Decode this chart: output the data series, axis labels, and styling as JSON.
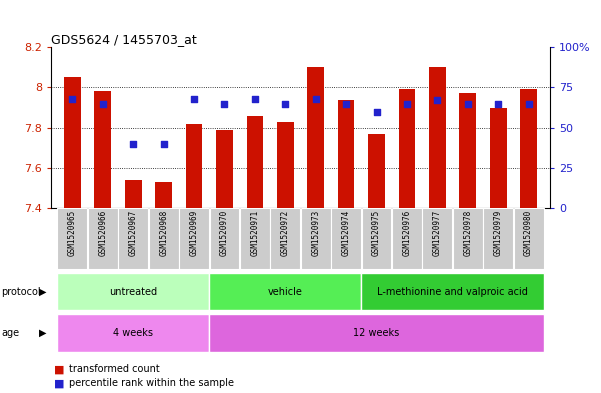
{
  "title": "GDS5624 / 1455703_at",
  "samples": [
    "GSM1520965",
    "GSM1520966",
    "GSM1520967",
    "GSM1520968",
    "GSM1520969",
    "GSM1520970",
    "GSM1520971",
    "GSM1520972",
    "GSM1520973",
    "GSM1520974",
    "GSM1520975",
    "GSM1520976",
    "GSM1520977",
    "GSM1520978",
    "GSM1520979",
    "GSM1520980"
  ],
  "bar_values": [
    8.05,
    7.98,
    7.54,
    7.53,
    7.82,
    7.79,
    7.86,
    7.83,
    8.1,
    7.94,
    7.77,
    7.99,
    8.1,
    7.97,
    7.9,
    7.99
  ],
  "percentile_values": [
    68,
    65,
    40,
    40,
    68,
    65,
    68,
    65,
    68,
    65,
    60,
    65,
    67,
    65,
    65,
    65
  ],
  "ylim": [
    7.4,
    8.2
  ],
  "yticks": [
    7.4,
    7.6,
    7.8,
    8.0,
    8.2
  ],
  "yticklabels": [
    "7.4",
    "7.6",
    "7.8",
    "8",
    "8.2"
  ],
  "right_yticks": [
    0,
    25,
    50,
    75,
    100
  ],
  "right_yticklabels": [
    "0",
    "25",
    "50",
    "75",
    "100%"
  ],
  "bar_color": "#cc1100",
  "dot_color": "#2222cc",
  "bar_bottom": 7.4,
  "protocol_groups": [
    {
      "label": "untreated",
      "start": 0,
      "end": 4,
      "color": "#bbffbb"
    },
    {
      "label": "vehicle",
      "start": 5,
      "end": 9,
      "color": "#55ee55"
    },
    {
      "label": "L-methionine and valproic acid",
      "start": 10,
      "end": 15,
      "color": "#33cc33"
    }
  ],
  "age_groups": [
    {
      "label": "4 weeks",
      "start": 0,
      "end": 4,
      "color": "#ee88ee"
    },
    {
      "label": "12 weeks",
      "start": 5,
      "end": 15,
      "color": "#dd66dd"
    }
  ],
  "legend_bar_color": "#cc1100",
  "legend_dot_color": "#2222cc",
  "bg_color": "#ffffff",
  "plot_bg_color": "#ffffff",
  "tick_label_color_left": "#cc2200",
  "tick_label_color_right": "#2222cc",
  "sample_box_color": "#cccccc",
  "grid_color": "#000000"
}
